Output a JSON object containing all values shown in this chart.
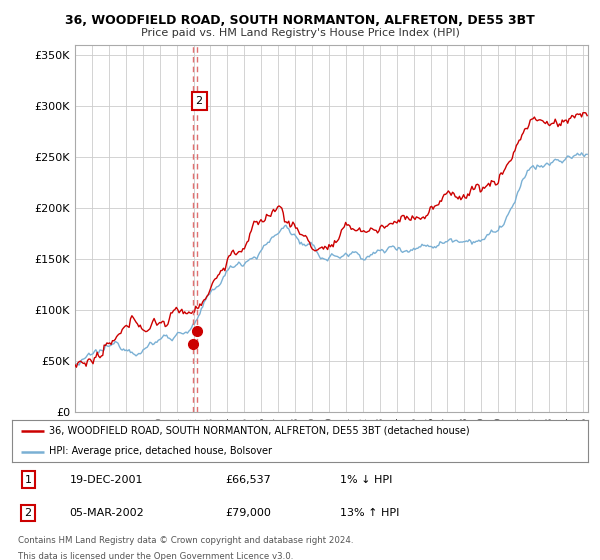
{
  "title": "36, WOODFIELD ROAD, SOUTH NORMANTON, ALFRETON, DE55 3BT",
  "subtitle": "Price paid vs. HM Land Registry's House Price Index (HPI)",
  "ylabel_ticks": [
    "£0",
    "£50K",
    "£100K",
    "£150K",
    "£200K",
    "£250K",
    "£300K",
    "£350K"
  ],
  "ytick_values": [
    0,
    50000,
    100000,
    150000,
    200000,
    250000,
    300000,
    350000
  ],
  "ylim": [
    0,
    360000
  ],
  "legend_line1": "36, WOODFIELD ROAD, SOUTH NORMANTON, ALFRETON, DE55 3BT (detached house)",
  "legend_line2": "HPI: Average price, detached house, Bolsover",
  "line_color_red": "#cc0000",
  "line_color_blue": "#7ab0d4",
  "marker_color_red": "#cc0000",
  "dashed_color": "#e07070",
  "transaction1_date": "19-DEC-2001",
  "transaction1_price": "£66,537",
  "transaction1_hpi": "1% ↓ HPI",
  "transaction2_date": "05-MAR-2002",
  "transaction2_price": "£79,000",
  "transaction2_hpi": "13% ↑ HPI",
  "footnote1": "Contains HM Land Registry data © Crown copyright and database right 2024.",
  "footnote2": "This data is licensed under the Open Government Licence v3.0.",
  "background_color": "#ffffff",
  "plot_bg_color": "#ffffff",
  "grid_color": "#cccccc",
  "transaction1_x_year": 2001.97,
  "transaction2_x_year": 2002.18,
  "transaction1_y": 66537,
  "transaction2_y": 79000,
  "xlim_start": 1995,
  "xlim_end": 2025.3
}
